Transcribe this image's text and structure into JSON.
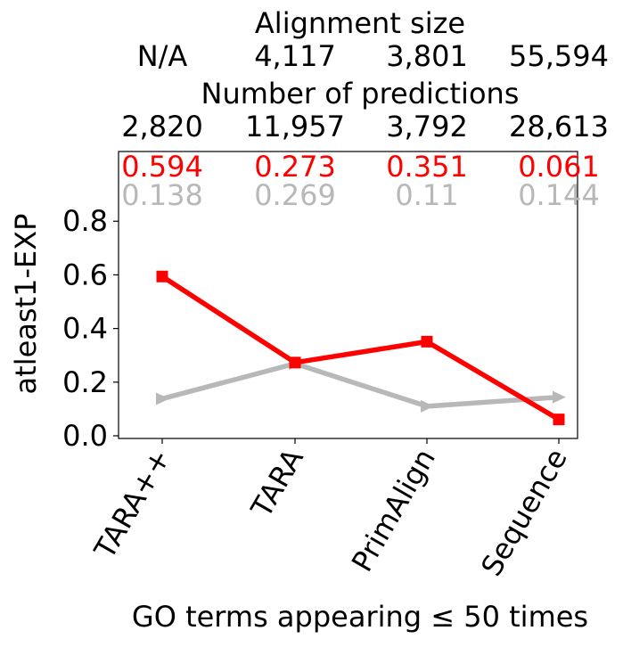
{
  "chart_data": {
    "type": "line",
    "categories": [
      "TARA++",
      "TARA",
      "PrimAlign",
      "Sequence"
    ],
    "xlabel": "GO terms appearing ≤ 50 times",
    "ylabel": "atleast1-EXP",
    "ylim": [
      -0.01,
      1.06
    ],
    "yticks": [
      0.0,
      0.2,
      0.4,
      0.6,
      0.8
    ],
    "ytick_labels": [
      "0.0",
      "0.2",
      "0.4",
      "0.6",
      "0.8"
    ],
    "grid": false,
    "top_headers": {
      "alignment_size_title": "Alignment size",
      "alignment_size_values": [
        "N/A",
        "4,117",
        "3,801",
        "55,594"
      ],
      "predictions_title": "Number of predictions",
      "predictions_values": [
        "2,820",
        "11,957",
        "3,792",
        "28,613"
      ]
    },
    "series": [
      {
        "values": [
          0.594,
          0.273,
          0.351,
          0.061
        ],
        "value_labels": [
          "0.594",
          "0.273",
          "0.351",
          "0.061"
        ],
        "color": "#ff0000",
        "marker": "square"
      },
      {
        "values": [
          0.138,
          0.269,
          0.11,
          0.144
        ],
        "value_labels": [
          "0.138",
          "0.269",
          "0.11",
          "0.144"
        ],
        "color": "#b8b8b8",
        "marker": "triangle-right"
      }
    ]
  }
}
